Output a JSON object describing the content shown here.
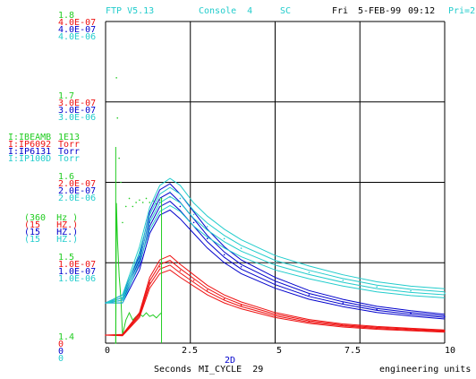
{
  "header": {
    "program": "FTP V5.13",
    "console": "Console  4",
    "code": "SC",
    "day": "Fri",
    "date": "5-FEB-99",
    "time": "09:12",
    "priority": "Pri=2"
  },
  "colors": {
    "green": "#22cc22",
    "red": "#ee1111",
    "blue": "#0000cc",
    "cyan": "#22cccc",
    "grid": "#000000",
    "header": "#22cccc"
  },
  "y_ticks": [
    {
      "level": "top",
      "green": "1.8",
      "red": "4.0E-07",
      "blue": "4.0E-07",
      "cyan": "4.0E-06"
    },
    {
      "level": "g1",
      "green": "1.7",
      "red": "3.0E-07",
      "blue": "3.0E-07",
      "cyan": "3.0E-06"
    },
    {
      "level": "g2",
      "green": "1.6",
      "red": "2.0E-07",
      "blue": "2.0E-07",
      "cyan": "2.0E-06"
    },
    {
      "level": "g3",
      "green": "1.5",
      "red": "1.0E-07",
      "blue": "1.0E-07",
      "cyan": "1.0E-06"
    },
    {
      "level": "bottom",
      "green": "1.4",
      "red": "0",
      "blue": "0",
      "cyan": "0"
    }
  ],
  "devices": [
    {
      "name": "I:IBEAMB",
      "units": "1E13",
      "rate": "(360  Hz )",
      "color": "green"
    },
    {
      "name": "I:IP6092",
      "units": "Torr",
      "rate": "(15   HZ.)",
      "color": "red"
    },
    {
      "name": "I:IP6131",
      "units": "Torr",
      "rate": "(15   HZ.)",
      "color": "blue"
    },
    {
      "name": "I:IP100D",
      "units": "Torr",
      "rate": "(15   HZ.)",
      "color": "cyan"
    }
  ],
  "x_axis": {
    "ticks": [
      "0",
      "2.5",
      "5",
      "7.5",
      "10"
    ],
    "mode": "2D",
    "label": "Seconds",
    "cycle": "MI_CYCLE  29",
    "units_label": "engineering units"
  },
  "chart_data": {
    "type": "line",
    "xlabel": "Seconds",
    "xlim": [
      0,
      10
    ],
    "ylim_green": [
      1.4,
      1.8
    ],
    "ylim_red": [
      0,
      4e-07
    ],
    "ylim_blue": [
      0,
      4e-07
    ],
    "ylim_cyan": [
      0,
      4e-06
    ],
    "grid": true,
    "series": [
      {
        "name": "I:IBEAMB",
        "color": "green",
        "axis": "green",
        "x": [
          0.3,
          0.32,
          0.35,
          0.4,
          0.45,
          0.5,
          0.6,
          0.7,
          0.8,
          0.9,
          1.0,
          1.1,
          1.2,
          1.3,
          1.4,
          1.5,
          1.6,
          1.65
        ],
        "values": [
          1.4,
          1.73,
          1.68,
          1.63,
          1.6,
          1.55,
          1.57,
          1.58,
          1.57,
          1.575,
          1.578,
          1.575,
          1.58,
          1.575,
          1.577,
          1.573,
          1.578,
          1.58
        ]
      },
      {
        "name": "I:IP6092",
        "color": "red",
        "axis": "red",
        "x": [
          0,
          0.5,
          1.0,
          1.3,
          1.6,
          1.9,
          2.2,
          2.6,
          3.0,
          3.5,
          4.0,
          5.0,
          6.0,
          7.0,
          8.0,
          9.0,
          10.0
        ],
        "values": [
          1e-08,
          1e-08,
          3.5e-08,
          7.5e-08,
          9.5e-08,
          1e-07,
          9e-08,
          7.8e-08,
          6.6e-08,
          5.5e-08,
          4.7e-08,
          3.5e-08,
          2.7e-08,
          2.2e-08,
          1.9e-08,
          1.7e-08,
          1.5e-08
        ]
      },
      {
        "name": "I:IP6131",
        "color": "blue",
        "axis": "blue",
        "x": [
          0,
          0.5,
          1.0,
          1.3,
          1.6,
          1.9,
          2.2,
          2.6,
          3.0,
          3.5,
          4.0,
          5.0,
          6.0,
          7.0,
          8.0,
          9.0,
          10.0
        ],
        "values": [
          5e-08,
          5.5e-08,
          1e-07,
          1.5e-07,
          1.75e-07,
          1.82e-07,
          1.7e-07,
          1.5e-07,
          1.3e-07,
          1.1e-07,
          9.5e-08,
          7.5e-08,
          6e-08,
          5e-08,
          4.2e-08,
          3.7e-08,
          3.3e-08
        ]
      },
      {
        "name": "I:IP100D",
        "color": "cyan",
        "axis": "cyan",
        "x": [
          0,
          0.5,
          1.0,
          1.3,
          1.6,
          1.9,
          2.2,
          2.6,
          3.0,
          3.5,
          4.0,
          5.0,
          6.0,
          7.0,
          8.0,
          9.0,
          10.0
        ],
        "values": [
          5e-07,
          5.5e-07,
          1.1e-06,
          1.55e-06,
          1.8e-06,
          1.88e-06,
          1.8e-06,
          1.6e-06,
          1.45e-06,
          1.3e-06,
          1.18e-06,
          1e-06,
          8.8e-07,
          7.8e-07,
          7e-07,
          6.5e-07,
          6.2e-07
        ]
      }
    ]
  }
}
